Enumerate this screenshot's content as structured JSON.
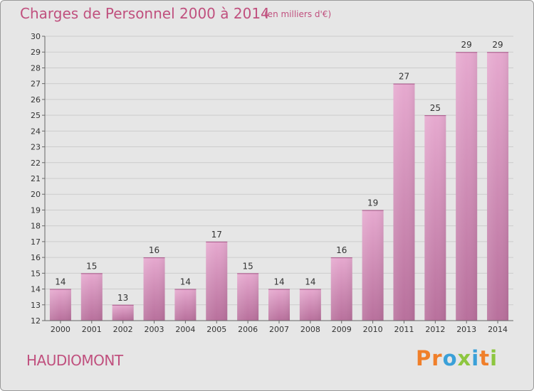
{
  "header": {
    "title": "Charges de Personnel 2000 à 2014",
    "subtitle": "(en milliers d'€)"
  },
  "footer": {
    "commune": "HAUDIOMONT",
    "logo_text": "Proxiti"
  },
  "colors": {
    "bar_light": "#e6a9cf",
    "bar_dark": "#b8709c",
    "title": "#c0507e",
    "logo": [
      "#f07f2a",
      "#f07f2a",
      "#3aa0d8",
      "#8dc63f",
      "#3aa0d8",
      "#f07f2a",
      "#8dc63f"
    ]
  },
  "chart_data": {
    "type": "bar",
    "title": "Charges de Personnel 2000 à 2014",
    "subtitle": "(en milliers d'€)",
    "categories": [
      "2000",
      "2001",
      "2002",
      "2003",
      "2004",
      "2005",
      "2006",
      "2007",
      "2008",
      "2009",
      "2010",
      "2011",
      "2012",
      "2013",
      "2014"
    ],
    "values": [
      14,
      15,
      13,
      16,
      14,
      17,
      15,
      14,
      14,
      16,
      19,
      27,
      25,
      29,
      29
    ],
    "ylim": [
      12,
      30
    ],
    "yticks": [
      12,
      13,
      14,
      15,
      16,
      17,
      18,
      19,
      20,
      21,
      22,
      23,
      24,
      25,
      26,
      27,
      28,
      29,
      30
    ],
    "grid": true,
    "data_labels": true
  }
}
